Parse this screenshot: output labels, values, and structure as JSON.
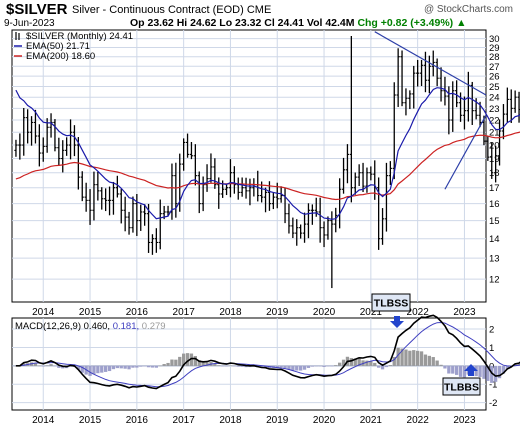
{
  "header": {
    "symbol": "$SILVER",
    "name": "Silver - Continuous Contract (EOD)",
    "exchange": "CME",
    "credit": "@ StockCharts.com",
    "date": "9-Jun-2023",
    "ohlc": "Op 23.62  Hi 24.62  Lo 23.32  Cl 24.41  Vol 42.4M",
    "change": "Chg +0.82 (+3.49%)",
    "change_arrow": "triangle-up-icon"
  },
  "colors": {
    "bar": "#000000",
    "ema50": "#1a1aaa",
    "ema200": "#cc2222",
    "trendline": "#2d3fa8",
    "macd_line": "#000000",
    "signal_line": "#4040c0",
    "histogram": "#9a9a9a",
    "histogram_negative": "#9ea0cc",
    "grid": "#cfd8e8",
    "callout_bg": "#dfe7f5",
    "arrow": "#2244cc",
    "change_up": "#008000"
  },
  "chart_data": [
    {
      "type": "ohlc",
      "title": "$SILVER (Monthly)",
      "subtitle": "24.41",
      "series": [
        {
          "name": "EMA(50)",
          "last": "21.71"
        },
        {
          "name": "EMA(200)",
          "last": "18.60"
        }
      ],
      "x_tick_labels": [
        "2014",
        "2015",
        "2016",
        "2017",
        "2018",
        "2019",
        "2020",
        "2021",
        "2022",
        "2023"
      ],
      "y_tick_labels": [
        12,
        13,
        14,
        15,
        16,
        17,
        18,
        19,
        20,
        21,
        22,
        23,
        24,
        25,
        26,
        27,
        28,
        29,
        30
      ],
      "ylim": [
        11,
        31
      ],
      "yscale": "log",
      "grid": true,
      "axis_position": "right",
      "x_start": "2013-06",
      "close": [
        20.0,
        20.0,
        22.2,
        21.0,
        21.8,
        20.7,
        19.4,
        19.9,
        21.4,
        21.8,
        19.8,
        19.0,
        19.6,
        20.0,
        21.0,
        20.0,
        17.7,
        16.4,
        16.2,
        15.6,
        17.2,
        16.8,
        16.3,
        16.2,
        16.2,
        17.0,
        16.6,
        15.6,
        15.2,
        14.6,
        16.0,
        15.0,
        15.5,
        15.4,
        13.8,
        14.0,
        13.8,
        15.4,
        15.5,
        15.5,
        17.8,
        16.0,
        18.6,
        20.2,
        19.3,
        19.2,
        17.8,
        16.0,
        17.2,
        17.6,
        18.4,
        17.2,
        16.6,
        16.9,
        17.0,
        18.0,
        17.2,
        16.7,
        17.0,
        16.8,
        17.0,
        17.2,
        16.5,
        16.4,
        16.7,
        16.0,
        16.4,
        16.3,
        16.5,
        15.4,
        14.7,
        14.3,
        14.6,
        14.3,
        14.8,
        15.6,
        15.6,
        15.5,
        14.6,
        14.2,
        15.0,
        14.8,
        15.3,
        16.9,
        18.2,
        19.3,
        17.0,
        17.7,
        18.0,
        17.1,
        18.0,
        17.9,
        17.0,
        14.0,
        15.1,
        17.8,
        18.3,
        24.2,
        28.0,
        23.5,
        23.9,
        24.3,
        26.3,
        26.3,
        27.1,
        25.6,
        27.0,
        27.4,
        25.8,
        24.6,
        24.1,
        22.0,
        24.6,
        23.5,
        22.4,
        22.8,
        25.1,
        22.8,
        22.4,
        21.8,
        20.3,
        19.1,
        18.0,
        19.2,
        21.1,
        22.5,
        23.8,
        23.0,
        24.0,
        22.9,
        24.4
      ],
      "ema50_last": 21.71,
      "ema200_last": 18.6
    },
    {
      "type": "macd",
      "title": "MACD(12,26,9)",
      "values": [
        "0.460",
        "0.181",
        "0.279"
      ],
      "series": [
        {
          "name": "MACD",
          "last": 0.46
        },
        {
          "name": "Signal",
          "last": 0.181
        },
        {
          "name": "Histogram",
          "last": 0.279
        }
      ],
      "x_tick_labels": [
        "2014",
        "2015",
        "2016",
        "2017",
        "2018",
        "2019",
        "2020",
        "2021",
        "2022",
        "2023"
      ],
      "y_tick_labels": [
        -2,
        -1,
        0,
        1,
        2
      ],
      "ylim": [
        -2.4,
        2.6
      ]
    }
  ],
  "annotations": [
    {
      "text": "TLBSS",
      "arrow": "arrow-down-icon"
    },
    {
      "text": "TLBBS",
      "arrow": "arrow-up-icon"
    }
  ]
}
